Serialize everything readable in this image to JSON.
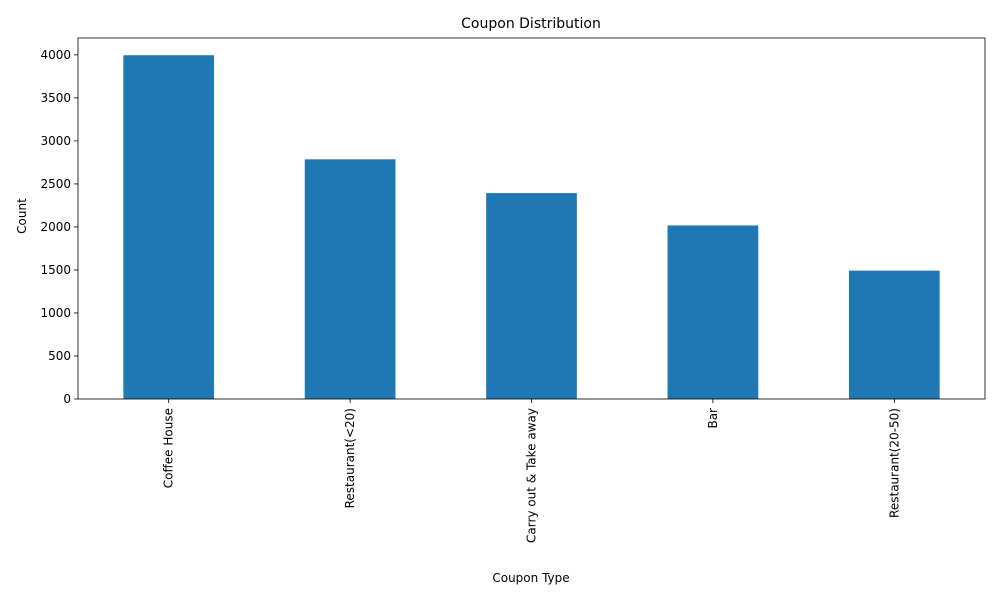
{
  "chart_data": {
    "type": "bar",
    "title": "Coupon Distribution",
    "xlabel": "Coupon Type",
    "ylabel": "Count",
    "categories": [
      "Coffee House",
      "Restaurant(<20)",
      "Carry out & Take away",
      "Bar",
      "Restaurant(20-50)"
    ],
    "values": [
      3996,
      2786,
      2393,
      2017,
      1492
    ],
    "ylim": [
      0,
      4196
    ],
    "yticks": [
      0,
      500,
      1000,
      1500,
      2000,
      2500,
      3000,
      3500,
      4000
    ],
    "grid": false,
    "legend": "none",
    "bar_color": "#1f77b4"
  }
}
